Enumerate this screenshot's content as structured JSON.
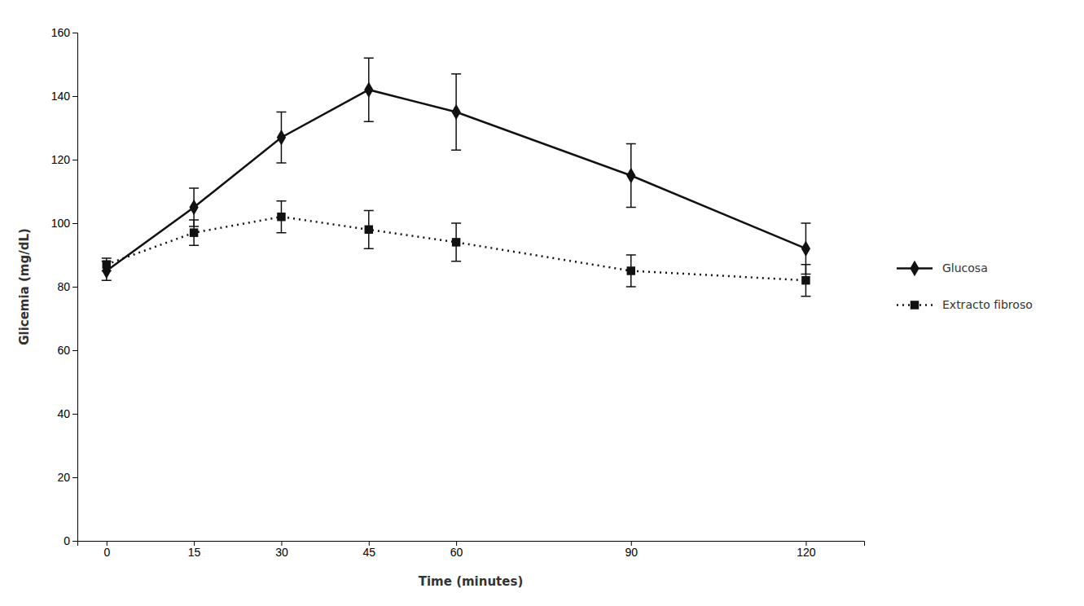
{
  "chart_data": {
    "type": "line",
    "x": [
      0,
      15,
      30,
      45,
      60,
      90,
      120
    ],
    "series": [
      {
        "name": "Glucosa",
        "color": "#111111",
        "marker": "diamond",
        "line_style": "solid",
        "values": [
          85,
          105,
          127,
          142,
          135,
          115,
          92
        ],
        "errors": [
          3,
          6,
          8,
          10,
          12,
          10,
          8
        ]
      },
      {
        "name": "Extracto fibroso",
        "color": "#111111",
        "marker": "square",
        "line_style": "dotted",
        "values": [
          87,
          97,
          102,
          98,
          94,
          85,
          82
        ],
        "errors": [
          2,
          4,
          5,
          6,
          6,
          5,
          5
        ]
      }
    ],
    "xlabel": "Time (minutes)",
    "ylabel": "Glicemia (mg/dL)",
    "xlim": [
      -5,
      130
    ],
    "ylim": [
      0,
      160
    ],
    "xticks": [
      0,
      15,
      30,
      45,
      60,
      90,
      120
    ],
    "yticks": [
      0,
      20,
      40,
      60,
      80,
      100,
      120,
      140,
      160
    ],
    "grid": false,
    "legend": "right"
  }
}
